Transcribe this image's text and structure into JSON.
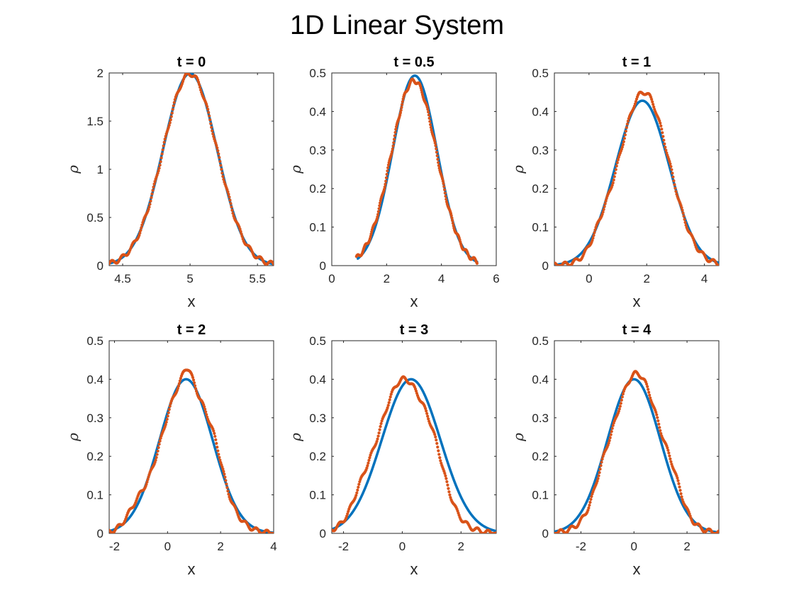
{
  "figure": {
    "title": "1D Linear System"
  },
  "colors": {
    "analytic": "#0072BD",
    "sample": "#D95319",
    "axis": "#262626"
  },
  "chart_data": [
    {
      "type": "line",
      "title": "t = 0",
      "xlabel": "x",
      "ylabel": "ρ",
      "xlim": [
        4.4,
        5.62
      ],
      "ylim": [
        0,
        2
      ],
      "xticks": [
        4.5,
        5,
        5.5
      ],
      "xtick_labels": [
        "4.5",
        "5",
        "5.5"
      ],
      "yticks": [
        0,
        0.5,
        1,
        1.5,
        2
      ],
      "ytick_labels": [
        "0",
        "0.5",
        "1",
        "1.5",
        "2"
      ],
      "series": [
        {
          "style": "line",
          "mean": 5.0,
          "sigma": 0.2,
          "peak": 1.995,
          "range": [
            4.4,
            5.62
          ]
        },
        {
          "style": "dots",
          "mean": 5.0,
          "sigma": 0.2,
          "peak": 1.99,
          "range": [
            4.4,
            5.62
          ],
          "bumps": []
        }
      ]
    },
    {
      "type": "line",
      "title": "t = 0.5",
      "xlabel": "x",
      "ylabel": "ρ",
      "xlim": [
        0,
        6
      ],
      "ylim": [
        0,
        0.5
      ],
      "xticks": [
        0,
        2,
        4,
        6
      ],
      "xtick_labels": [
        "0",
        "2",
        "4",
        "6"
      ],
      "yticks": [
        0,
        0.1,
        0.2,
        0.3,
        0.4,
        0.5
      ],
      "ytick_labels": [
        "0",
        "0.1",
        "0.2",
        "0.3",
        "0.4",
        "0.5"
      ],
      "series": [
        {
          "style": "line",
          "mean": 3.03,
          "sigma": 0.81,
          "peak": 0.493,
          "range": [
            0.95,
            5.3
          ]
        },
        {
          "style": "dots",
          "mean": 3.0,
          "sigma": 0.83,
          "peak": 0.48,
          "range": [
            0.9,
            5.3
          ],
          "bumps": []
        }
      ]
    },
    {
      "type": "line",
      "title": "t = 1",
      "xlabel": "x",
      "ylabel": "ρ",
      "xlim": [
        -1.2,
        4.5
      ],
      "ylim": [
        0,
        0.5
      ],
      "xticks": [
        0,
        2,
        4
      ],
      "xtick_labels": [
        "0",
        "2",
        "4"
      ],
      "yticks": [
        0,
        0.1,
        0.2,
        0.3,
        0.4,
        0.5
      ],
      "ytick_labels": [
        "0",
        "0.1",
        "0.2",
        "0.3",
        "0.4",
        "0.5"
      ],
      "series": [
        {
          "style": "line",
          "mean": 1.85,
          "sigma": 0.93,
          "peak": 0.428,
          "range": [
            -1.2,
            4.5
          ]
        },
        {
          "style": "dots",
          "mean": 1.9,
          "sigma": 0.87,
          "peak": 0.45,
          "range": [
            -1.2,
            4.5
          ],
          "bumps": [
            [
              0.4,
              0.025,
              0.3
            ]
          ]
        }
      ]
    },
    {
      "type": "line",
      "title": "t = 2",
      "xlabel": "x",
      "ylabel": "ρ",
      "xlim": [
        -2.2,
        4
      ],
      "ylim": [
        0,
        0.5
      ],
      "xticks": [
        -2,
        0,
        2,
        4
      ],
      "xtick_labels": [
        "-2",
        "0",
        "2",
        "4"
      ],
      "yticks": [
        0,
        0.1,
        0.2,
        0.3,
        0.4,
        0.5
      ],
      "ytick_labels": [
        "0",
        "0.1",
        "0.2",
        "0.3",
        "0.4",
        "0.5"
      ],
      "series": [
        {
          "style": "line",
          "mean": 0.7,
          "sigma": 1.0,
          "peak": 0.4,
          "range": [
            -2.2,
            4
          ]
        },
        {
          "style": "dots",
          "mean": 0.7,
          "sigma": 0.95,
          "peak": 0.4,
          "range": [
            -2.2,
            4
          ],
          "bumps": [
            [
              -1.2,
              0.03,
              0.35
            ],
            [
              1.8,
              0.04,
              0.3
            ],
            [
              0.75,
              0.03,
              0.15
            ]
          ]
        }
      ]
    },
    {
      "type": "line",
      "title": "t = 3",
      "xlabel": "x",
      "ylabel": "ρ",
      "xlim": [
        -2.4,
        3.2
      ],
      "ylim": [
        0,
        0.5
      ],
      "xticks": [
        -2,
        0,
        2
      ],
      "xtick_labels": [
        "-2",
        "0",
        "2"
      ],
      "yticks": [
        0,
        0.1,
        0.2,
        0.3,
        0.4,
        0.5
      ],
      "ytick_labels": [
        "0",
        "0.1",
        "0.2",
        "0.3",
        "0.4",
        "0.5"
      ],
      "series": [
        {
          "style": "line",
          "mean": 0.3,
          "sigma": 1.0,
          "peak": 0.4,
          "range": [
            -2.4,
            3.2
          ]
        },
        {
          "style": "dots",
          "mean": 0.05,
          "sigma": 0.9,
          "peak": 0.4,
          "range": [
            -2.4,
            3.2
          ],
          "bumps": [
            [
              1.1,
              0.05,
              0.35
            ],
            [
              -1.4,
              0.03,
              0.3
            ]
          ]
        }
      ]
    },
    {
      "type": "line",
      "title": "t = 4",
      "xlabel": "x",
      "ylabel": "ρ",
      "xlim": [
        -3,
        3.2
      ],
      "ylim": [
        0,
        0.5
      ],
      "xticks": [
        -2,
        0,
        2
      ],
      "xtick_labels": [
        "-2",
        "0",
        "2"
      ],
      "yticks": [
        0,
        0.1,
        0.2,
        0.3,
        0.4,
        0.5
      ],
      "ytick_labels": [
        "0",
        "0.1",
        "0.2",
        "0.3",
        "0.4",
        "0.5"
      ],
      "series": [
        {
          "style": "line",
          "mean": 0.0,
          "sigma": 1.0,
          "peak": 0.4,
          "range": [
            -3,
            3.2
          ]
        },
        {
          "style": "dots",
          "mean": 0.1,
          "sigma": 0.93,
          "peak": 0.415,
          "range": [
            -3,
            3.2
          ],
          "bumps": [
            [
              -1.2,
              0.03,
              0.3
            ],
            [
              1.5,
              0.035,
              0.3
            ]
          ]
        }
      ]
    }
  ]
}
